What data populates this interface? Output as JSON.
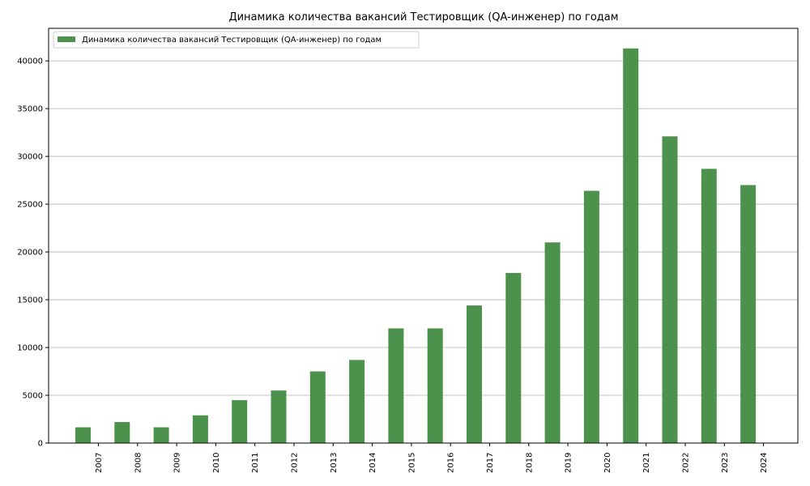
{
  "chart_data": {
    "type": "bar",
    "title": "Динамика количества вакансий Тестировщик (QA-инженер) по годам",
    "xlabel": "",
    "ylabel": "",
    "categories": [
      "2007",
      "2008",
      "2009",
      "2010",
      "2011",
      "2012",
      "2013",
      "2014",
      "2015",
      "2016",
      "2017",
      "2018",
      "2019",
      "2020",
      "2021",
      "2022",
      "2023",
      "2024"
    ],
    "series": [
      {
        "name": "Динамика количества вакансий Тестировщик (QA-инженер) по годам",
        "values": [
          1650,
          2200,
          1650,
          2900,
          4500,
          5500,
          7500,
          8700,
          12000,
          12000,
          14400,
          17800,
          21000,
          26400,
          41300,
          32100,
          28700,
          27000
        ]
      }
    ],
    "ylim": [
      0,
      43400
    ],
    "yticks": [
      0,
      5000,
      10000,
      15000,
      20000,
      25000,
      30000,
      35000,
      40000
    ],
    "grid": "y",
    "legend": "top-left",
    "bar_color": "#4c924c"
  }
}
